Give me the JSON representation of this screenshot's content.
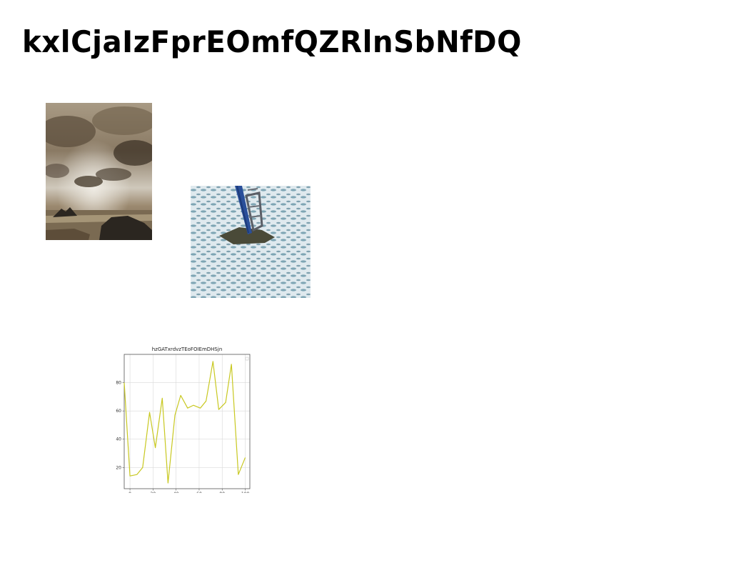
{
  "page": {
    "title": "kxlCjaIzFprEOmfQZRlnSbNfDQ"
  },
  "images": [
    {
      "name": "cloudy-sky-coast-photo",
      "colors": {
        "sky": "#8a7a64",
        "light": "#dcd6cc",
        "rock": "#2b2620",
        "sea": "#9c8a70"
      }
    },
    {
      "name": "snow-field-photo",
      "colors": {
        "snow": "#dfe9ee",
        "shadow": "#3f7286",
        "pole": "#2a4f9a",
        "ground": "#4a4a38"
      }
    }
  ],
  "chart_data": {
    "type": "line",
    "title": "hzGATxrdvzTEoFOIEmDHSjn",
    "xlabel": "",
    "ylabel": "",
    "xlim": [
      -5,
      104
    ],
    "ylim": [
      5,
      100
    ],
    "xticks": [
      0,
      20,
      40,
      60,
      80,
      100
    ],
    "yticks": [
      20,
      40,
      60,
      80
    ],
    "grid": true,
    "legend": "top-right",
    "color": "#c8c820",
    "series": [
      {
        "x": [
          -5,
          0,
          6,
          11,
          17,
          22,
          28,
          33,
          39,
          44,
          50,
          55,
          61,
          66,
          72,
          77,
          83,
          88,
          94,
          100
        ],
        "y": [
          80,
          14,
          15,
          20,
          59,
          34,
          69,
          9,
          57,
          71,
          62,
          64,
          62,
          67,
          95,
          61,
          66,
          93,
          15,
          27
        ]
      }
    ]
  }
}
